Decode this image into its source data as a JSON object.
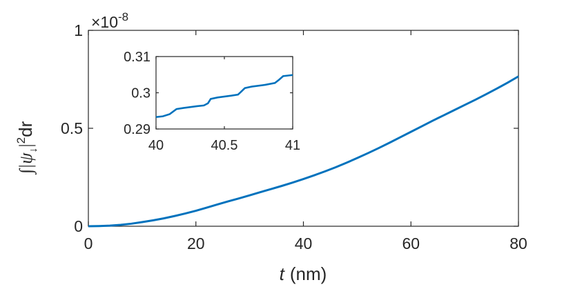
{
  "chart_data": [
    {
      "type": "line",
      "xlabel_var": "t",
      "xlabel_unit": "(nm)",
      "ylabel": {
        "prefix": "∫|ψ",
        "subscript": "↓",
        "suffix": "|",
        "power": "2",
        "tail": "dr"
      },
      "multiplier": {
        "times": "×10",
        "exponent": "-8"
      },
      "xlim": [
        0,
        80
      ],
      "ylim": [
        0,
        1
      ],
      "xticks": [
        "0",
        "20",
        "40",
        "60",
        "80"
      ],
      "yticks": [
        "0",
        "0.5",
        "1"
      ],
      "grid": false,
      "color": "#0072bd",
      "series": [
        {
          "x": [
            0,
            2,
            4,
            6,
            8,
            10,
            12,
            14,
            16,
            18,
            20,
            22,
            24,
            26,
            28,
            30,
            32,
            34,
            36,
            38,
            40,
            42,
            44,
            46,
            48,
            50,
            52,
            54,
            56,
            58,
            60,
            62,
            64,
            66,
            68,
            70,
            72,
            74,
            76,
            78,
            80
          ],
          "values": [
            0,
            0.001,
            0.003,
            0.007,
            0.013,
            0.021,
            0.03,
            0.04,
            0.052,
            0.065,
            0.079,
            0.095,
            0.111,
            0.127,
            0.142,
            0.158,
            0.174,
            0.19,
            0.206,
            0.223,
            0.241,
            0.26,
            0.28,
            0.301,
            0.324,
            0.348,
            0.373,
            0.399,
            0.426,
            0.454,
            0.482,
            0.51,
            0.538,
            0.565,
            0.592,
            0.619,
            0.646,
            0.674,
            0.703,
            0.733,
            0.765
          ]
        }
      ]
    },
    {
      "type": "line",
      "xlim": [
        40,
        41
      ],
      "ylim": [
        0.29,
        0.31
      ],
      "xticks": [
        "40",
        "40.5",
        "41"
      ],
      "yticks": [
        "0.29",
        "0.3",
        "0.31"
      ],
      "color": "#0072bd",
      "series": [
        {
          "x": [
            40,
            40.05,
            40.1,
            40.15,
            40.2,
            40.3,
            40.35,
            40.38,
            40.4,
            40.45,
            40.55,
            40.6,
            40.62,
            40.65,
            40.7,
            40.8,
            40.87,
            40.9,
            40.93,
            41
          ],
          "values": [
            0.2933,
            0.2935,
            0.2941,
            0.2955,
            0.2958,
            0.2963,
            0.2965,
            0.2971,
            0.2983,
            0.2987,
            0.2992,
            0.2995,
            0.3002,
            0.3013,
            0.3017,
            0.3022,
            0.3027,
            0.3036,
            0.3046,
            0.3049
          ]
        }
      ]
    }
  ]
}
